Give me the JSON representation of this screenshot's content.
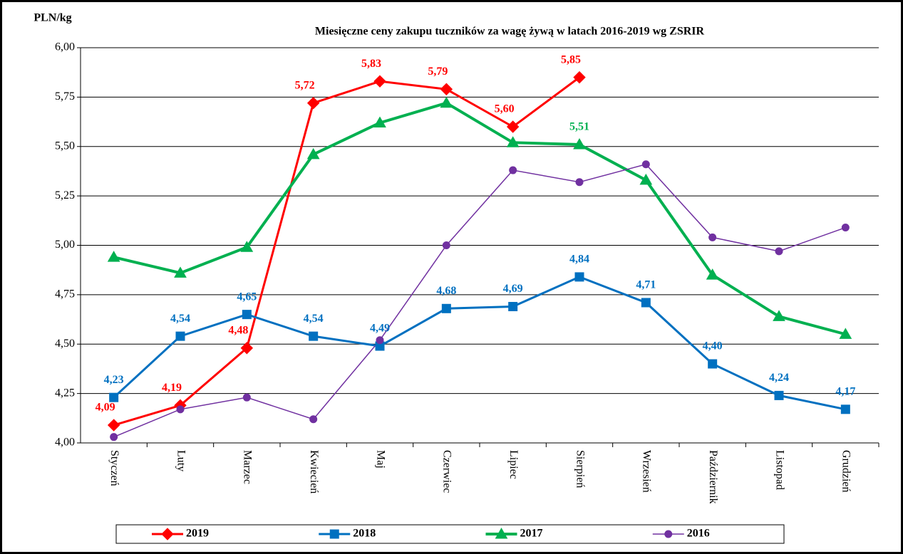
{
  "chart_data": {
    "type": "line",
    "title": "Miesięczne ceny zakupu tuczników za wagę żywą w latach 2016-2019  wg ZSRIR",
    "y_label": "PLN/kg",
    "categories": [
      "Styczeń",
      "Luty",
      "Marzec",
      "Kwiecień",
      "Maj",
      "Czerwiec",
      "Lipiec",
      "Sierpień",
      "Wrzesień",
      "Październik",
      "Listopad",
      "Grudzień"
    ],
    "ylim": [
      4,
      6
    ],
    "yticks": [
      {
        "value": 4,
        "label": "4,00"
      },
      {
        "value": 4.25,
        "label": "4,25"
      },
      {
        "value": 4.5,
        "label": "4,50"
      },
      {
        "value": 4.75,
        "label": "4,75"
      },
      {
        "value": 5,
        "label": "5,00"
      },
      {
        "value": 5.25,
        "label": "5,25"
      },
      {
        "value": 5.5,
        "label": "5,50"
      },
      {
        "value": 5.75,
        "label": "5,75"
      },
      {
        "value": 6,
        "label": "6,00"
      }
    ],
    "grid": true,
    "legend": "bottom",
    "series": [
      {
        "name": "2019",
        "color": "#ff0000",
        "marker": "diamond",
        "width": 3,
        "values": [
          4.09,
          4.19,
          4.48,
          5.72,
          5.83,
          5.79,
          5.6,
          5.85,
          null,
          null,
          null,
          null
        ],
        "value_labels": [
          "4,09",
          "4,19",
          "4,48",
          "5,72",
          "5,83",
          "5,79",
          "5,60",
          "5,85",
          null,
          null,
          null,
          null
        ]
      },
      {
        "name": "2018",
        "color": "#0070c0",
        "marker": "square",
        "width": 3,
        "values": [
          4.23,
          4.54,
          4.65,
          4.54,
          4.49,
          4.68,
          4.69,
          4.84,
          4.71,
          4.4,
          4.24,
          4.17
        ],
        "value_labels": [
          "4,23",
          "4,54",
          "4,65",
          "4,54",
          "4,49",
          "4,68",
          "4,69",
          "4,84",
          "4,71",
          "4,40",
          "4,24",
          "4,17"
        ]
      },
      {
        "name": "2017",
        "color": "#00b050",
        "marker": "triangle",
        "width": 4,
        "values": [
          4.94,
          4.86,
          4.99,
          5.46,
          5.62,
          5.72,
          5.52,
          5.51,
          5.33,
          4.85,
          4.64,
          4.55
        ],
        "value_labels": [
          null,
          null,
          null,
          null,
          null,
          null,
          null,
          "5,51",
          null,
          null,
          null,
          null
        ]
      },
      {
        "name": "2016",
        "color": "#7030a0",
        "marker": "circle",
        "width": 1.5,
        "values": [
          4.03,
          4.17,
          4.23,
          4.12,
          4.52,
          5.0,
          5.38,
          5.32,
          5.41,
          5.04,
          4.97,
          5.09
        ]
      }
    ]
  }
}
